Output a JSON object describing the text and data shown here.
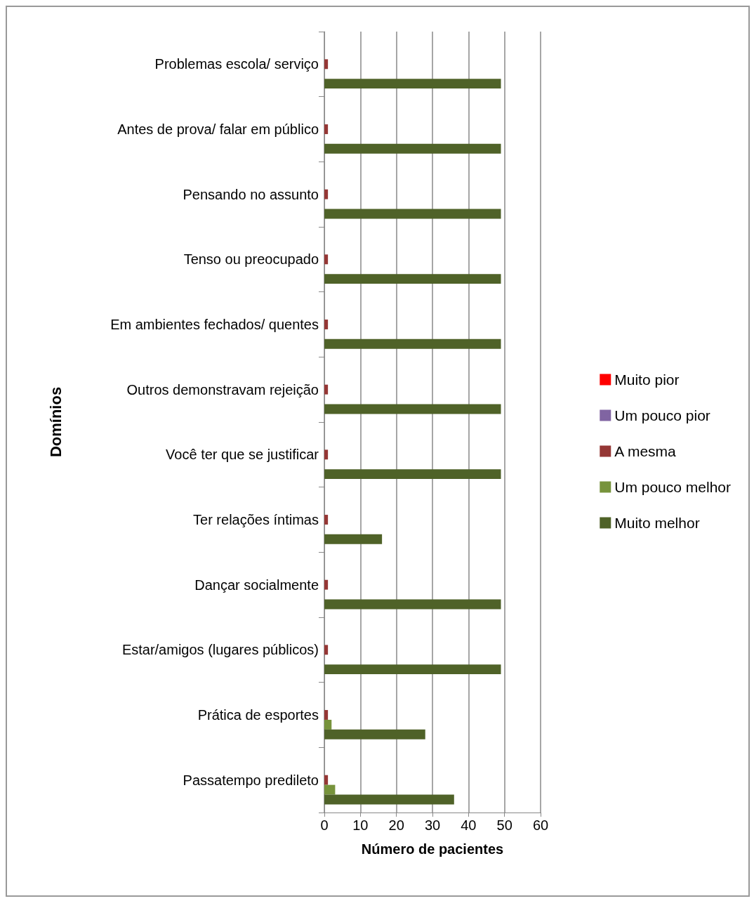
{
  "chart_data": {
    "type": "bar",
    "orientation": "horizontal",
    "xlabel": "Número de pacientes",
    "ylabel": "Domínios",
    "categories": [
      "Problemas escola/ serviço",
      "Antes de prova/ falar em público",
      "Pensando no assunto",
      "Tenso ou preocupado",
      "Em ambientes fechados/ quentes",
      "Outros demonstravam rejeição",
      "Você ter que se justificar",
      "Ter relações íntimas",
      "Dançar socialmente",
      "Estar/amigos (lugares públicos)",
      "Prática de esportes",
      "Passatempo predileto"
    ],
    "series": [
      {
        "name": "Muito pior",
        "color": "#ff0000",
        "values": [
          0,
          0,
          0,
          0,
          0,
          0,
          0,
          0,
          0,
          0,
          0,
          0
        ]
      },
      {
        "name": "Um pouco pior",
        "color": "#8064a2",
        "values": [
          0,
          0,
          0,
          0,
          0,
          0,
          0,
          0,
          0,
          0,
          0,
          0
        ]
      },
      {
        "name": "A mesma",
        "color": "#953735",
        "values": [
          1,
          1,
          1,
          1,
          1,
          1,
          1,
          1,
          1,
          1,
          1,
          1
        ]
      },
      {
        "name": "Um pouco melhor",
        "color": "#77933c",
        "values": [
          0,
          0,
          0,
          0,
          0,
          0,
          0,
          0,
          0,
          0,
          2,
          3
        ]
      },
      {
        "name": "Muito melhor",
        "color": "#4f6228",
        "values": [
          49,
          49,
          49,
          49,
          49,
          49,
          49,
          16,
          49,
          49,
          28,
          36
        ]
      }
    ],
    "xlim": [
      0,
      60
    ],
    "xticks": [
      0,
      10,
      20,
      30,
      40,
      50,
      60
    ],
    "grid": "x",
    "legend": "right"
  }
}
